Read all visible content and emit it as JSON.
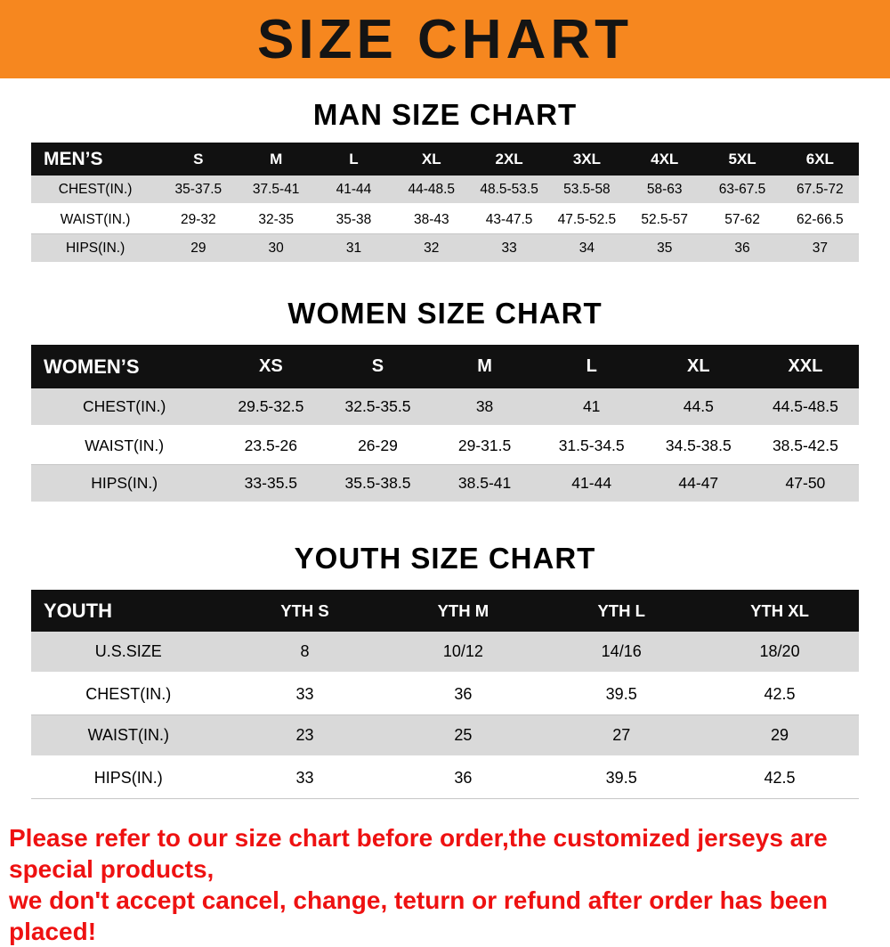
{
  "banner": {
    "title": "SIZE CHART",
    "bg_color": "#f6871f",
    "title_color": "#141414"
  },
  "sections": [
    {
      "id": "men",
      "title": "MAN SIZE CHART",
      "table": {
        "header": [
          "MEN’S",
          "S",
          "M",
          "L",
          "XL",
          "2XL",
          "3XL",
          "4XL",
          "5XL",
          "6XL"
        ],
        "rows": [
          [
            "CHEST(IN.)",
            "35-37.5",
            "37.5-41",
            "41-44",
            "44-48.5",
            "48.5-53.5",
            "53.5-58",
            "58-63",
            "63-67.5",
            "67.5-72"
          ],
          [
            "WAIST(IN.)",
            "29-32",
            "32-35",
            "35-38",
            "38-43",
            "43-47.5",
            "47.5-52.5",
            "52.5-57",
            "57-62",
            "62-66.5"
          ],
          [
            "HIPS(IN.)",
            "29",
            "30",
            "31",
            "32",
            "33",
            "34",
            "35",
            "36",
            "37"
          ]
        ]
      }
    },
    {
      "id": "women",
      "title": "WOMEN SIZE CHART",
      "table": {
        "header": [
          "WOMEN’S",
          "XS",
          "S",
          "M",
          "L",
          "XL",
          "XXL"
        ],
        "rows": [
          [
            "CHEST(IN.)",
            "29.5-32.5",
            "32.5-35.5",
            "38",
            "41",
            "44.5",
            "44.5-48.5"
          ],
          [
            "WAIST(IN.)",
            "23.5-26",
            "26-29",
            "29-31.5",
            "31.5-34.5",
            "34.5-38.5",
            "38.5-42.5"
          ],
          [
            "HIPS(IN.)",
            "33-35.5",
            "35.5-38.5",
            "38.5-41",
            "41-44",
            "44-47",
            "47-50"
          ]
        ]
      }
    },
    {
      "id": "youth",
      "title": "YOUTH SIZE CHART",
      "table": {
        "header": [
          "YOUTH",
          "YTH S",
          "YTH M",
          "YTH L",
          "YTH XL"
        ],
        "rows": [
          [
            "U.S.SIZE",
            "8",
            "10/12",
            "14/16",
            "18/20"
          ],
          [
            "CHEST(IN.)",
            "33",
            "36",
            "39.5",
            "42.5"
          ],
          [
            "WAIST(IN.)",
            "23",
            "25",
            "27",
            "29"
          ],
          [
            "HIPS(IN.)",
            "33",
            "36",
            "39.5",
            "42.5"
          ]
        ]
      }
    }
  ],
  "disclaimer": {
    "line1": "Please refer to our size chart before order,the customized jerseys are special products,",
    "line2": "we don't accept cancel, change, teturn or refund after order has been placed!",
    "color": "#ee1111"
  },
  "colors": {
    "banner_orange": "#f6871f",
    "table_header_bg": "#111111",
    "table_header_text": "#ffffff",
    "stripe_gray": "#d9d9d9"
  }
}
